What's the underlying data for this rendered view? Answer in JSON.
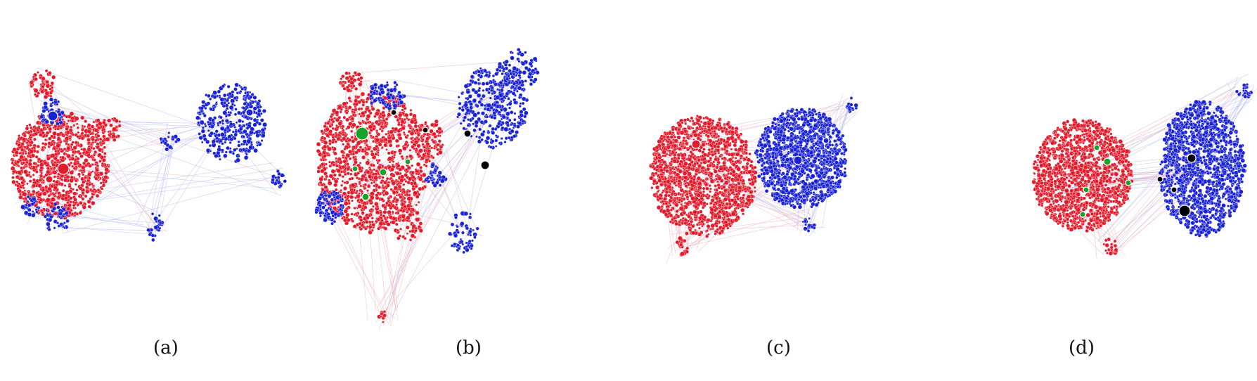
{
  "figure": {
    "panels": [
      {
        "caption": "(a)"
      },
      {
        "caption": "(b)"
      },
      {
        "caption": "(c)"
      },
      {
        "caption": "(d)"
      }
    ]
  },
  "colors": {
    "community_red": "#e41a2a",
    "community_blue": "#1a22d6",
    "highlight_green": "#13a52a",
    "highlight_black": "#000000",
    "edge_red": "#f2a0a6",
    "edge_blue": "#a8aef0"
  }
}
